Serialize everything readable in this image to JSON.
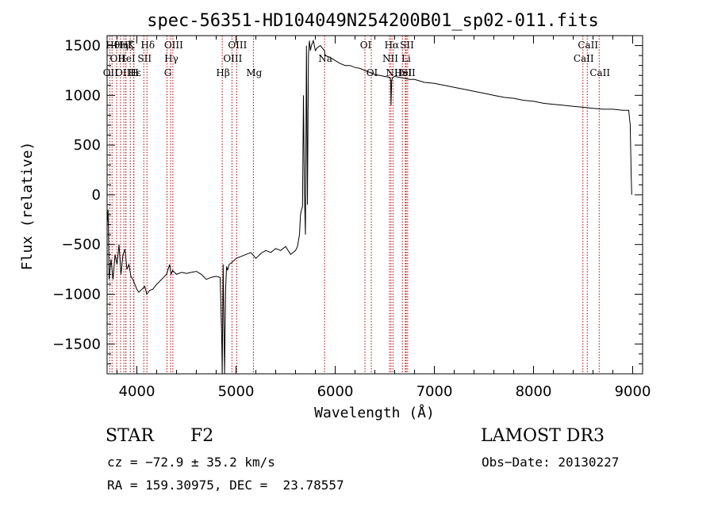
{
  "chart_data": {
    "type": "line",
    "title": "spec-56351-HD104049N254200B01_sp02-011.fits",
    "xlabel": "Wavelength (Å)",
    "ylabel": "Flux (relative)",
    "xlim": [
      3700,
      9100
    ],
    "ylim": [
      -1800,
      1600
    ],
    "xticks": [
      4000,
      5000,
      6000,
      7000,
      8000,
      9000
    ],
    "yticks": [
      -1500,
      -1000,
      -500,
      0,
      500,
      1000,
      1500
    ],
    "grid": false,
    "series": [
      {
        "x": [
          3700,
          3710,
          3720,
          3740,
          3760,
          3780,
          3800,
          3820,
          3840,
          3860,
          3880,
          3900,
          3920,
          3940,
          3960,
          3980,
          4000,
          4020,
          4050,
          4080,
          4100,
          4130,
          4160,
          4200,
          4250,
          4300,
          4330,
          4345,
          4360,
          4400,
          4450,
          4500,
          4550,
          4600,
          4650,
          4700,
          4750,
          4800,
          4840,
          4855,
          4861,
          4870,
          4885,
          4895,
          4905,
          4915,
          4930,
          4960,
          5000,
          5050,
          5100,
          5150,
          5200,
          5250,
          5300,
          5350,
          5400,
          5450,
          5500,
          5550,
          5600,
          5620,
          5640,
          5650,
          5660,
          5670,
          5680,
          5690,
          5700,
          5710,
          5720,
          5730,
          5740,
          5750,
          5760,
          5780,
          5800,
          5820,
          5850,
          5890,
          5900,
          5950,
          6000,
          6050,
          6100,
          6150,
          6200,
          6250,
          6300,
          6350,
          6400,
          6450,
          6500,
          6550,
          6560,
          6563,
          6570,
          6580,
          6600,
          6650,
          6700,
          6750,
          6800,
          6900,
          7000,
          7100,
          7200,
          7300,
          7400,
          7500,
          7600,
          7700,
          7800,
          7900,
          8000,
          8100,
          8200,
          8300,
          8400,
          8500,
          8600,
          8700,
          8800,
          8900,
          8960,
          8975,
          8985,
          8990
        ],
        "y": [
          -300,
          -150,
          -850,
          -650,
          -850,
          -600,
          -700,
          -500,
          -800,
          -600,
          -550,
          -750,
          -700,
          -820,
          -850,
          -900,
          -950,
          -980,
          -950,
          -920,
          -1000,
          -960,
          -950,
          -900,
          -850,
          -800,
          -700,
          -800,
          -760,
          -800,
          -780,
          -790,
          -780,
          -770,
          -800,
          -850,
          -830,
          -820,
          -830,
          -1400,
          -1800,
          -700,
          -1800,
          -950,
          -720,
          -760,
          -700,
          -680,
          -640,
          -620,
          -600,
          -580,
          -640,
          -590,
          -560,
          -580,
          -540,
          -560,
          -520,
          -600,
          -560,
          -520,
          -400,
          -200,
          -150,
          -120,
          1000,
          0,
          -400,
          1500,
          -100,
          1400,
          1550,
          1450,
          1500,
          1550,
          1450,
          1480,
          1500,
          1450,
          1400,
          1380,
          1350,
          1320,
          1300,
          1300,
          1280,
          1270,
          1250,
          1230,
          1210,
          1200,
          1190,
          1180,
          1150,
          900,
          1150,
          1180,
          1190,
          1180,
          1170,
          1160,
          1160,
          1130,
          1120,
          1100,
          1080,
          1060,
          1040,
          1020,
          1000,
          980,
          970,
          950,
          940,
          920,
          910,
          900,
          890,
          880,
          870,
          860,
          860,
          850,
          850,
          700,
          200,
          0
        ]
      }
    ],
    "lines": [
      {
        "x": 3727,
        "label": "OII",
        "row": 2
      },
      {
        "x": 3750,
        "label": "Hθ",
        "row": 0
      },
      {
        "x": 3797,
        "label": "OII",
        "row": 1
      },
      {
        "x": 3835,
        "label": "Hη",
        "row": 0
      },
      {
        "x": 3869,
        "label": "OIII",
        "row": 2
      },
      {
        "x": 3889,
        "label": "Hζ",
        "row": 0
      },
      {
        "x": 3889,
        "label": "HeI",
        "row": 1
      },
      {
        "x": 3934,
        "label": "K",
        "row": 0
      },
      {
        "x": 3968,
        "label": "H",
        "row": 2
      },
      {
        "x": 3970,
        "label": "Hε",
        "row": 2
      },
      {
        "x": 4070,
        "label": "SII",
        "row": 1
      },
      {
        "x": 4102,
        "label": "Hδ",
        "row": 0
      },
      {
        "x": 4304,
        "label": "G",
        "row": 2
      },
      {
        "x": 4340,
        "label": "Hγ",
        "row": 1
      },
      {
        "x": 4363,
        "label": "OIII",
        "row": 0
      },
      {
        "x": 4861,
        "label": "Hβ",
        "row": 2
      },
      {
        "x": 4959,
        "label": "OIII",
        "row": 1
      },
      {
        "x": 5007,
        "label": "OIII",
        "row": 0
      },
      {
        "x": 5175,
        "label": "Mg",
        "row": 2
      },
      {
        "x": 5893,
        "label": "Na",
        "row": 1
      },
      {
        "x": 6300,
        "label": "OI",
        "row": 0
      },
      {
        "x": 6364,
        "label": "OI",
        "row": 2
      },
      {
        "x": 6548,
        "label": "NII",
        "row": 1
      },
      {
        "x": 6563,
        "label": "Hα",
        "row": 0
      },
      {
        "x": 6583,
        "label": "NII",
        "row": 2
      },
      {
        "x": 6678,
        "label": "HeI",
        "row": 2
      },
      {
        "x": 6707,
        "label": "Li",
        "row": 1
      },
      {
        "x": 6716,
        "label": "SII",
        "row": 0
      },
      {
        "x": 6731,
        "label": "SII",
        "row": 2
      },
      {
        "x": 8498,
        "label": "CaII",
        "row": 1
      },
      {
        "x": 8542,
        "label": "CaII",
        "row": 0
      },
      {
        "x": 8662,
        "label": "CaII",
        "row": 2
      }
    ],
    "line_color": "#b30000"
  },
  "footer": {
    "object_class": "STAR",
    "subclass": "F2",
    "survey": "LAMOST DR3",
    "cz": "cz = −72.9 ± 35.2 km/s",
    "obs_date": "Obs−Date: 20130227",
    "coords": "RA = 159.30975, DEC =  23.78557"
  }
}
